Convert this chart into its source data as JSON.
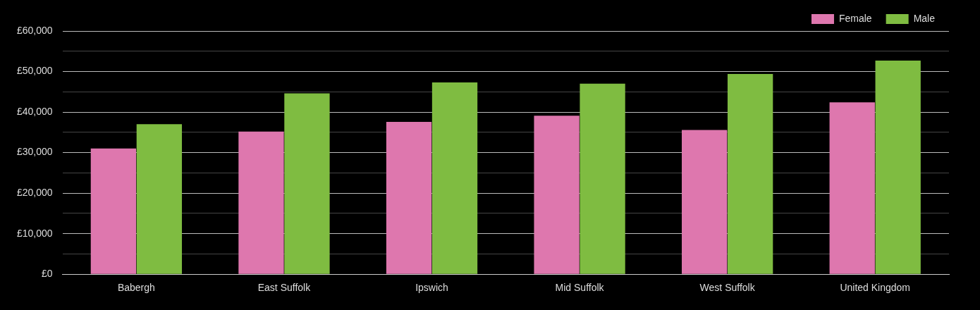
{
  "chart_data": {
    "type": "bar",
    "categories": [
      "Babergh",
      "East Suffolk",
      "Ipswich",
      "Mid Suffolk",
      "West Suffolk",
      "United Kingdom"
    ],
    "series": [
      {
        "name": "Female",
        "color": "#de77ae",
        "values": [
          31000,
          35200,
          37600,
          39100,
          35600,
          42400
        ]
      },
      {
        "name": "Male",
        "color": "#7fbc41",
        "values": [
          37000,
          44600,
          47300,
          47000,
          49400,
          52700
        ]
      }
    ],
    "ylim": [
      0,
      60000
    ],
    "yticks": [
      {
        "value": 0,
        "label": "£0"
      },
      {
        "value": 5000,
        "label": null
      },
      {
        "value": 10000,
        "label": "£10,000"
      },
      {
        "value": 15000,
        "label": null
      },
      {
        "value": 20000,
        "label": "£20,000"
      },
      {
        "value": 25000,
        "label": null
      },
      {
        "value": 30000,
        "label": "£30,000"
      },
      {
        "value": 35000,
        "label": null
      },
      {
        "value": 40000,
        "label": "£40,000"
      },
      {
        "value": 45000,
        "label": null
      },
      {
        "value": 50000,
        "label": "£50,000"
      },
      {
        "value": 55000,
        "label": null
      },
      {
        "value": 60000,
        "label": "£60,000"
      }
    ],
    "grid": "y",
    "legend": "top right"
  }
}
